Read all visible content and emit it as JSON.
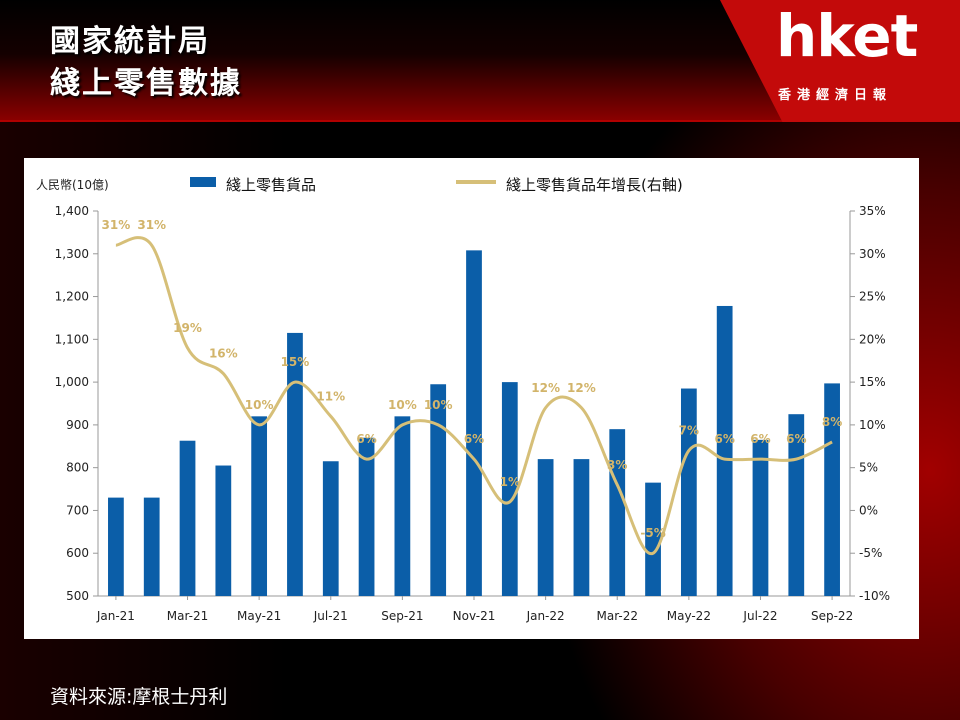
{
  "header": {
    "title_line1": "國家統計局",
    "title_line2": "綫上零售數據",
    "logo": "hket",
    "logo_subtitle": "香港經濟日報"
  },
  "colors": {
    "bar": "#0b5ea8",
    "line": "#d6bf78",
    "label": "#d2b46a",
    "logo_red": "#c30a0a"
  },
  "chart_data": {
    "type": "bar",
    "left_unit_label": "人民幣(10億)",
    "legend": {
      "bar": "綫上零售貨品",
      "line": "綫上零售貨品年增長(右軸)"
    },
    "categories": [
      "Jan-21",
      "Feb-21",
      "Mar-21",
      "Apr-21",
      "May-21",
      "Jun-21",
      "Jul-21",
      "Aug-21",
      "Sep-21",
      "Oct-21",
      "Nov-21",
      "Dec-21",
      "Jan-22",
      "Feb-22",
      "Mar-22",
      "Apr-22",
      "May-22",
      "Jun-22",
      "Jul-22",
      "Aug-22",
      "Sep-22"
    ],
    "x_tick_labels": [
      "Jan-21",
      "Mar-21",
      "May-21",
      "Jul-21",
      "Sep-21",
      "Nov-21",
      "Jan-22",
      "Mar-22",
      "May-22",
      "Jul-22",
      "Sep-22"
    ],
    "series": [
      {
        "type": "bar",
        "axis": "left",
        "values": [
          730,
          730,
          863,
          805,
          920,
          1115,
          815,
          870,
          920,
          995,
          1308,
          1000,
          820,
          820,
          890,
          765,
          985,
          1178,
          865,
          925,
          997
        ]
      },
      {
        "type": "line",
        "axis": "right",
        "values": [
          31,
          31,
          19,
          16,
          10,
          15,
          11,
          6,
          10,
          10,
          6,
          1,
          12,
          12,
          3,
          -5,
          7,
          6,
          6,
          6,
          8
        ]
      }
    ],
    "data_labels": [
      "31%",
      "31%",
      "19%",
      "16%",
      "10%",
      "15%",
      "11%",
      "6%",
      "10%",
      "10%",
      "6%",
      "1%",
      "12%",
      "12%",
      "3%",
      "-5%",
      "7%",
      "6%",
      "6%",
      "6%",
      "8%"
    ],
    "y_left": {
      "min": 500,
      "max": 1400,
      "ticks": [
        "500",
        "600",
        "700",
        "800",
        "900",
        "1,000",
        "1,100",
        "1,200",
        "1,300",
        "1,400"
      ]
    },
    "y_right": {
      "min": -10,
      "max": 35,
      "ticks": [
        "-10%",
        "-5%",
        "0%",
        "5%",
        "10%",
        "15%",
        "20%",
        "25%",
        "30%",
        "35%"
      ]
    }
  },
  "footer": {
    "source": "資料來源:摩根士丹利"
  }
}
